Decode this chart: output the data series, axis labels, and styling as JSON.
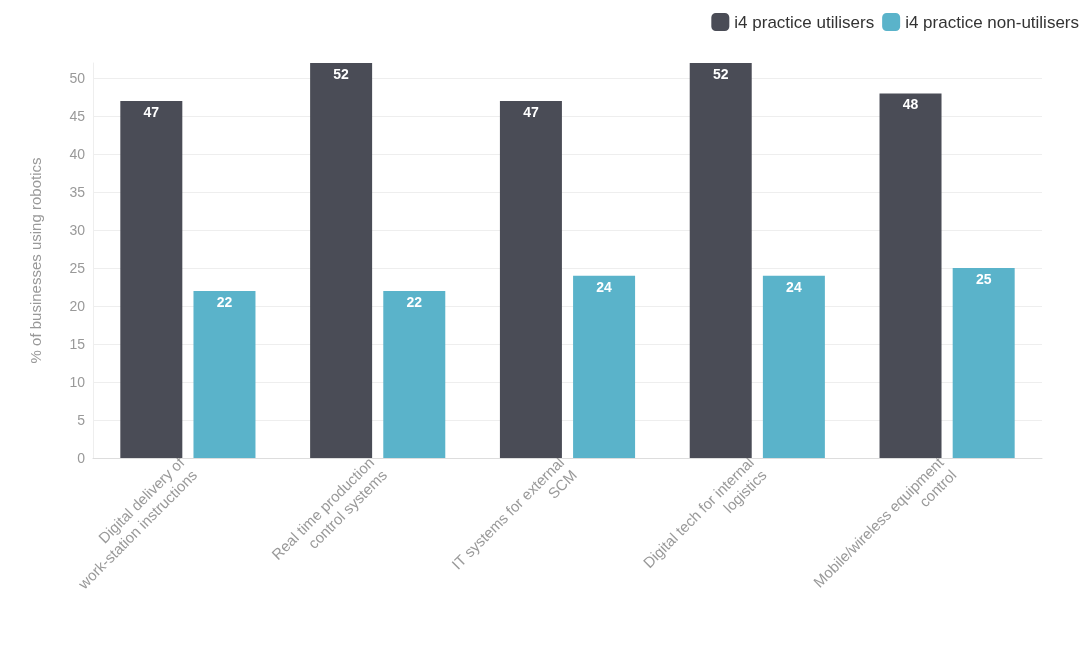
{
  "chart_data": {
    "type": "bar",
    "ylabel": "% of businesses using robotics",
    "categories": [
      "Digital delivery of\nwork-station instructions",
      "Real time production\ncontrol systems",
      "IT systems for external\nSCM",
      "Digital tech for internal\nlogistics",
      "Mobile/wireless equipment\ncontrol"
    ],
    "series": [
      {
        "name": "i4 practice utilisers",
        "color": "#4a4c56",
        "values": [
          47,
          52,
          47,
          52,
          48
        ]
      },
      {
        "name": "i4 practice non-utilisers",
        "color": "#5ab3ca",
        "values": [
          22,
          22,
          24,
          24,
          25
        ]
      }
    ],
    "ylim": [
      0,
      52
    ],
    "yticks": [
      0,
      5,
      10,
      15,
      20,
      25,
      30,
      35,
      40,
      45,
      50
    ],
    "grid": "y",
    "legend": "top right",
    "data_labels": true
  }
}
